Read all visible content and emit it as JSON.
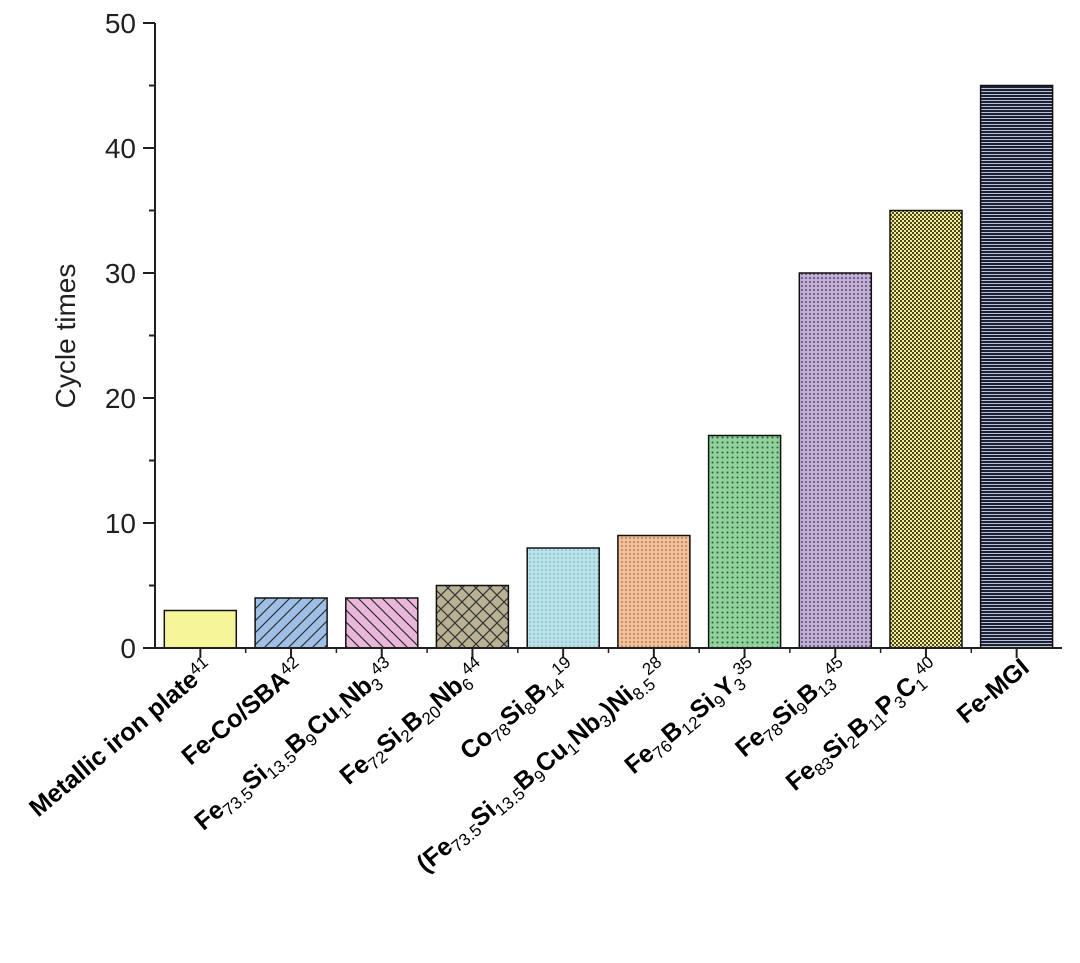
{
  "chart_data": {
    "type": "bar",
    "ylabel": "Cycle times",
    "xlabel": "",
    "ylim": [
      0,
      50
    ],
    "yticks": [
      "0",
      "10",
      "20",
      "30",
      "40",
      "50"
    ],
    "grid": false,
    "categories": [
      {
        "parts": [
          {
            "t": "Metallic iron plate"
          },
          {
            "t": "41",
            "s": "sup"
          }
        ],
        "text": "Metallic iron plate41"
      },
      {
        "parts": [
          {
            "t": "Fe-Co/SBA"
          },
          {
            "t": "42",
            "s": "sup"
          }
        ],
        "text": "Fe-Co/SBA42"
      },
      {
        "parts": [
          {
            "t": "Fe"
          },
          {
            "t": "73.5",
            "s": "sub"
          },
          {
            "t": "Si"
          },
          {
            "t": "13.5",
            "s": "sub"
          },
          {
            "t": "B"
          },
          {
            "t": "9",
            "s": "sub"
          },
          {
            "t": "Cu"
          },
          {
            "t": "1",
            "s": "sub"
          },
          {
            "t": "Nb"
          },
          {
            "t": "3",
            "s": "sub"
          },
          {
            "t": "43",
            "s": "sup"
          }
        ],
        "text": "Fe73.5Si13.5B9Cu1Nb343"
      },
      {
        "parts": [
          {
            "t": "Fe"
          },
          {
            "t": "72",
            "s": "sub"
          },
          {
            "t": "Si"
          },
          {
            "t": "2",
            "s": "sub"
          },
          {
            "t": "B"
          },
          {
            "t": "20",
            "s": "sub"
          },
          {
            "t": "Nb"
          },
          {
            "t": "6",
            "s": "sub"
          },
          {
            "t": "44",
            "s": "sup"
          }
        ],
        "text": "Fe72Si2B20Nb644"
      },
      {
        "parts": [
          {
            "t": "Co"
          },
          {
            "t": "78",
            "s": "sub"
          },
          {
            "t": "Si"
          },
          {
            "t": "8",
            "s": "sub"
          },
          {
            "t": "B"
          },
          {
            "t": "14",
            "s": "sub"
          },
          {
            "t": "19",
            "s": "sup"
          }
        ],
        "text": "Co78Si8B1419"
      },
      {
        "parts": [
          {
            "t": "(Fe"
          },
          {
            "t": "73.5",
            "s": "sub"
          },
          {
            "t": "Si"
          },
          {
            "t": "13.5",
            "s": "sub"
          },
          {
            "t": "B"
          },
          {
            "t": "9",
            "s": "sub"
          },
          {
            "t": "Cu"
          },
          {
            "t": "1",
            "s": "sub"
          },
          {
            "t": "Nb"
          },
          {
            "t": "3",
            "s": "sub"
          },
          {
            "t": ")Ni"
          },
          {
            "t": "8.5",
            "s": "sub"
          },
          {
            "t": "28",
            "s": "sup"
          }
        ],
        "text": "(Fe73.5Si13.5B9Cu1Nb3)Ni8.528"
      },
      {
        "parts": [
          {
            "t": "Fe"
          },
          {
            "t": "76",
            "s": "sub"
          },
          {
            "t": "B"
          },
          {
            "t": "12",
            "s": "sub"
          },
          {
            "t": "Si"
          },
          {
            "t": "9",
            "s": "sub"
          },
          {
            "t": "Y"
          },
          {
            "t": "3",
            "s": "sub"
          },
          {
            "t": "35",
            "s": "sup"
          }
        ],
        "text": "Fe76B12Si9Y335"
      },
      {
        "parts": [
          {
            "t": "Fe"
          },
          {
            "t": "78",
            "s": "sub"
          },
          {
            "t": "Si"
          },
          {
            "t": "9",
            "s": "sub"
          },
          {
            "t": "B"
          },
          {
            "t": "13",
            "s": "sub"
          },
          {
            "t": "45",
            "s": "sup"
          }
        ],
        "text": "Fe78Si9B1345"
      },
      {
        "parts": [
          {
            "t": "Fe"
          },
          {
            "t": "83",
            "s": "sub"
          },
          {
            "t": "Si"
          },
          {
            "t": "2",
            "s": "sub"
          },
          {
            "t": "B"
          },
          {
            "t": "11",
            "s": "sub"
          },
          {
            "t": "P"
          },
          {
            "t": "3",
            "s": "sub"
          },
          {
            "t": "C"
          },
          {
            "t": "1",
            "s": "sub"
          },
          {
            "t": "40",
            "s": "sup"
          }
        ],
        "text": "Fe83Si2B11P3C140"
      },
      {
        "parts": [
          {
            "t": "Fe-MGI"
          }
        ],
        "text": "Fe-MGI"
      }
    ],
    "values": [
      3,
      4,
      4,
      5,
      8,
      9,
      17,
      30,
      35,
      45
    ],
    "bar_colors": [
      "#f5f59a",
      "#9fbfe6",
      "#e9b7d9",
      "#b9b294",
      "#b6e2ea",
      "#f3c09a",
      "#8fd29c",
      "#c2afd8",
      "#f2ec8e",
      "#b9c1d8"
    ],
    "bar_patterns": [
      "none",
      "diag-up",
      "diag-down",
      "crosshatch",
      "fine-dots",
      "fine-grid",
      "dots",
      "dense-dots",
      "checker",
      "horizontal-lines"
    ]
  }
}
